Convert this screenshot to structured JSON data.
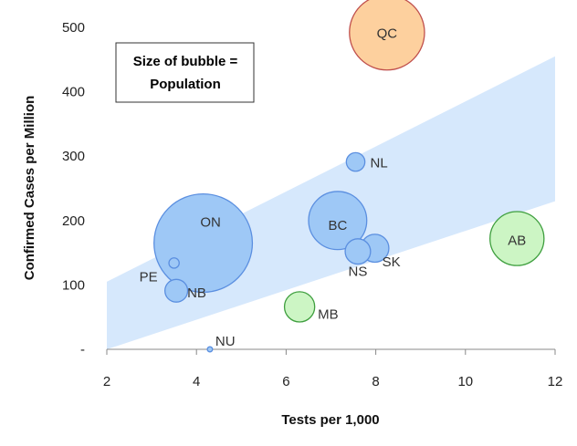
{
  "chart_data": {
    "type": "scatter",
    "variant": "bubble",
    "xlabel": "Tests per 1,000",
    "ylabel": "Confirmed Cases per Million",
    "xlim": [
      2,
      12
    ],
    "ylim": [
      0,
      500
    ],
    "x_ticks": [
      "2",
      "4",
      "6",
      "8",
      "10",
      "12"
    ],
    "y_ticks": [
      "-",
      "100",
      "200",
      "300",
      "400",
      "500"
    ],
    "annotation": [
      "Size of bubble =",
      "Population"
    ],
    "band": {
      "lower": [
        [
          2,
          0
        ],
        [
          12,
          230
        ]
      ],
      "upper": [
        [
          2,
          105
        ],
        [
          12,
          455
        ]
      ],
      "color": "#d6e8fc"
    },
    "colors": {
      "default_fill": "#9ec8f6",
      "default_stroke": "#5b8fe0",
      "high_fill": "#fdd09e",
      "high_stroke": "#c0504d",
      "low_fill": "#ccf5c4",
      "low_stroke": "#3f9f3f"
    },
    "points": [
      {
        "label": "QC",
        "x": 8.25,
        "y": 492,
        "size": 8.5,
        "group": "high"
      },
      {
        "label": "ON",
        "x": 4.15,
        "y": 165,
        "size": 14.6,
        "group": "default"
      },
      {
        "label": "BC",
        "x": 7.15,
        "y": 200,
        "size": 5.1,
        "group": "default"
      },
      {
        "label": "AB",
        "x": 11.15,
        "y": 172,
        "size": 4.4,
        "group": "low"
      },
      {
        "label": "NL",
        "x": 7.55,
        "y": 291,
        "size": 0.52,
        "group": "default"
      },
      {
        "label": "NS",
        "x": 7.6,
        "y": 152,
        "size": 0.97,
        "group": "default"
      },
      {
        "label": "SK",
        "x": 7.98,
        "y": 157,
        "size": 1.18,
        "group": "default"
      },
      {
        "label": "NB",
        "x": 3.55,
        "y": 91,
        "size": 0.78,
        "group": "default"
      },
      {
        "label": "PE",
        "x": 3.5,
        "y": 134,
        "size": 0.16,
        "group": "default"
      },
      {
        "label": "MB",
        "x": 6.3,
        "y": 66,
        "size": 1.38,
        "group": "low"
      },
      {
        "label": "NU",
        "x": 4.3,
        "y": 0,
        "size": 0.04,
        "group": "default"
      }
    ]
  }
}
